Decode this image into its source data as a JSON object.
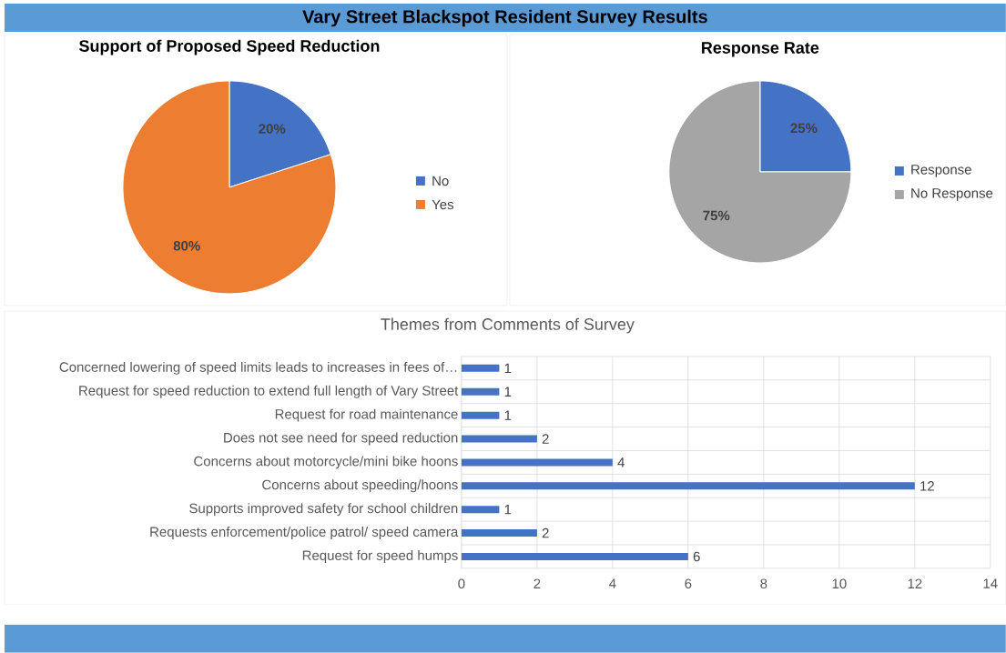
{
  "chart_data": [
    {
      "type": "other",
      "title": "Vary Street Blackspot Resident Survey Results"
    },
    {
      "type": "pie",
      "title": "Support of Proposed Speed Reduction",
      "categories": [
        "No",
        "Yes"
      ],
      "values": [
        20,
        80
      ],
      "colors": [
        "#4472c4",
        "#ed7d31"
      ],
      "value_labels": [
        "20%",
        "80%"
      ],
      "legend": "right"
    },
    {
      "type": "pie",
      "title": "Response Rate",
      "categories": [
        "Response",
        "No Response"
      ],
      "values": [
        25,
        75
      ],
      "colors": [
        "#4472c4",
        "#a5a5a5"
      ],
      "value_labels": [
        "25%",
        "75%"
      ],
      "legend": "right"
    },
    {
      "type": "bar",
      "orientation": "horizontal",
      "title": "Themes from Comments of Survey",
      "categories": [
        "Concerned lowering of speed limits leads to increases in fees of…",
        "Request for speed reduction to extend full length of Vary Street",
        "Request for road maintenance",
        "Does not see need for speed reduction",
        "Concerns about motorcycle/mini bike hoons",
        "Concerns about speeding/hoons",
        "Supports improved safety for school children",
        "Requests enforcement/police patrol/ speed camera",
        "Request for speed humps"
      ],
      "values": [
        1,
        1,
        1,
        2,
        4,
        12,
        1,
        2,
        6
      ],
      "color": "#4472c4",
      "xlim": [
        0,
        14
      ],
      "xticks": [
        0,
        2,
        4,
        6,
        8,
        10,
        12,
        14
      ],
      "grid": true,
      "data_labels": true
    }
  ]
}
